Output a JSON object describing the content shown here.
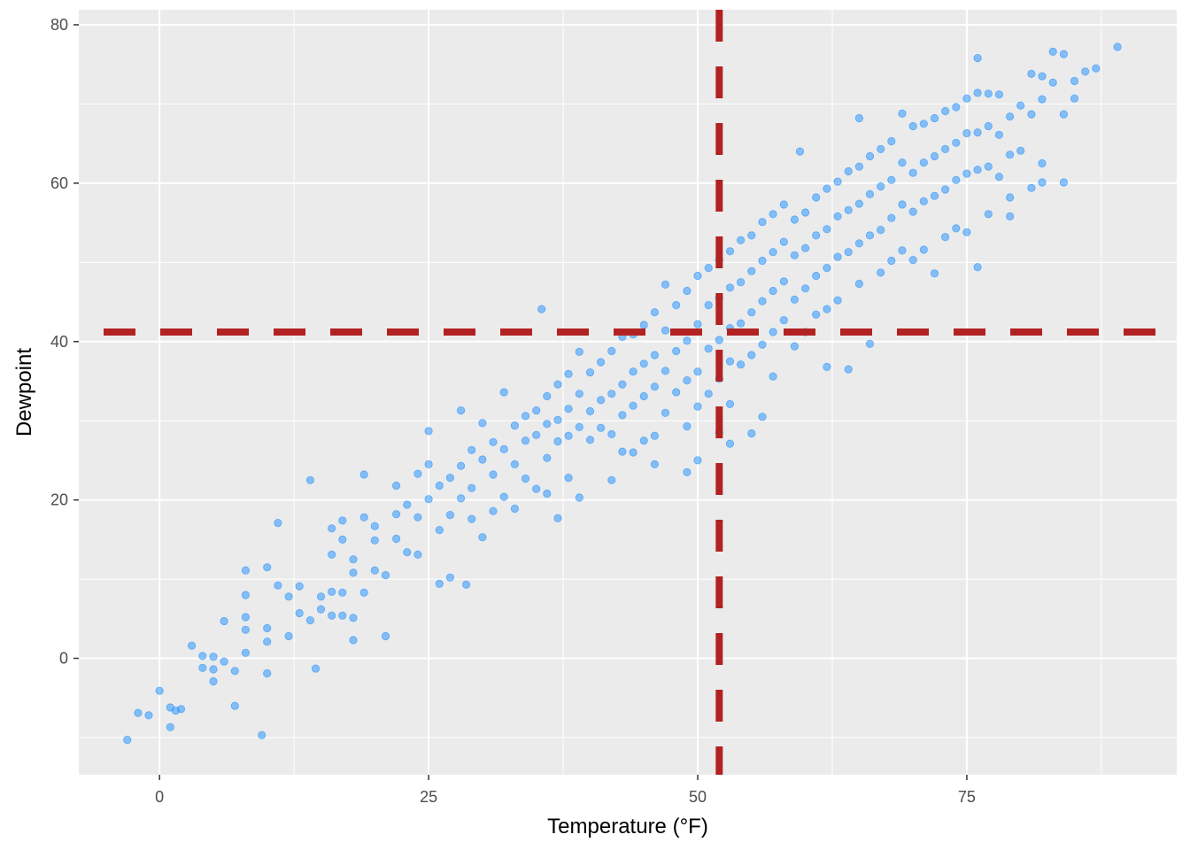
{
  "chart_data": {
    "type": "scatter",
    "title": "",
    "xlabel": "Temperature (°F)",
    "ylabel": "Dewpoint",
    "xlim": [
      -7.5,
      94.5
    ],
    "ylim": [
      -14.7,
      81.9
    ],
    "x_ticks": [
      0,
      25,
      50,
      75
    ],
    "y_ticks": [
      0,
      20,
      40,
      60,
      80
    ],
    "x_tick_labels": [
      "0",
      "25",
      "50",
      "75"
    ],
    "y_tick_labels": [
      "0",
      "20",
      "40",
      "60",
      "80"
    ],
    "grid": true,
    "legend": "none",
    "point_color": "#1E90FF",
    "reference_line_color": "#B22222",
    "reference_lines": {
      "vertical_x": 52,
      "horizontal_y": 41.2
    },
    "series": [
      {
        "points_estimated": [
          [
            -3,
            -10.3
          ],
          [
            -2,
            -6.9
          ],
          [
            -1,
            -7.2
          ],
          [
            0,
            -4.1
          ],
          [
            1,
            -6.2
          ],
          [
            1,
            -8.7
          ],
          [
            1.5,
            -6.6
          ],
          [
            2,
            -6.4
          ],
          [
            3,
            1.6
          ],
          [
            4,
            0.3
          ],
          [
            4,
            -1.2
          ],
          [
            5,
            -2.9
          ],
          [
            5,
            -1.4
          ],
          [
            5,
            0.2
          ],
          [
            6,
            -0.4
          ],
          [
            6,
            4.7
          ],
          [
            7,
            -1.6
          ],
          [
            7,
            -6.0
          ],
          [
            8,
            11.1
          ],
          [
            8,
            8.0
          ],
          [
            8,
            5.2
          ],
          [
            8,
            3.6
          ],
          [
            8,
            0.7
          ],
          [
            9.5,
            -9.7
          ],
          [
            10,
            11.5
          ],
          [
            10,
            3.8
          ],
          [
            10,
            2.1
          ],
          [
            10,
            -1.9
          ],
          [
            11,
            17.1
          ],
          [
            11,
            9.2
          ],
          [
            12,
            7.8
          ],
          [
            12,
            2.8
          ],
          [
            13,
            9.1
          ],
          [
            13,
            5.7
          ],
          [
            14,
            22.5
          ],
          [
            14,
            4.8
          ],
          [
            14.5,
            -1.3
          ],
          [
            15,
            7.8
          ],
          [
            15,
            6.2
          ],
          [
            16,
            16.4
          ],
          [
            16,
            13.1
          ],
          [
            16,
            8.4
          ],
          [
            16,
            5.4
          ],
          [
            17,
            17.4
          ],
          [
            17,
            15.0
          ],
          [
            17,
            8.3
          ],
          [
            17,
            5.4
          ],
          [
            18,
            12.5
          ],
          [
            18,
            10.8
          ],
          [
            18,
            5.1
          ],
          [
            18,
            2.3
          ],
          [
            19,
            23.2
          ],
          [
            19,
            17.8
          ],
          [
            19,
            8.3
          ],
          [
            20,
            16.7
          ],
          [
            20,
            14.9
          ],
          [
            20,
            11.1
          ],
          [
            21,
            10.5
          ],
          [
            21,
            2.8
          ],
          [
            22,
            21.8
          ],
          [
            22,
            18.2
          ],
          [
            22,
            15.1
          ],
          [
            23,
            19.4
          ],
          [
            23,
            13.4
          ],
          [
            24,
            23.3
          ],
          [
            24,
            17.8
          ],
          [
            24,
            13.1
          ],
          [
            25,
            28.7
          ],
          [
            25,
            24.5
          ],
          [
            25,
            20.1
          ],
          [
            26,
            9.4
          ],
          [
            26,
            21.8
          ],
          [
            26,
            16.2
          ],
          [
            27,
            22.8
          ],
          [
            27,
            18.1
          ],
          [
            27,
            10.2
          ],
          [
            28,
            31.3
          ],
          [
            28,
            24.3
          ],
          [
            28,
            20.2
          ],
          [
            28.5,
            9.3
          ],
          [
            29,
            26.3
          ],
          [
            29,
            21.5
          ],
          [
            29,
            17.6
          ],
          [
            30,
            29.7
          ],
          [
            30,
            25.1
          ],
          [
            30,
            15.3
          ],
          [
            31,
            27.3
          ],
          [
            31,
            23.2
          ],
          [
            31,
            18.6
          ],
          [
            32,
            33.6
          ],
          [
            32,
            26.4
          ],
          [
            32,
            20.4
          ],
          [
            33,
            29.4
          ],
          [
            33,
            24.5
          ],
          [
            33,
            18.9
          ],
          [
            34,
            30.6
          ],
          [
            34,
            27.5
          ],
          [
            34,
            22.7
          ],
          [
            35,
            31.3
          ],
          [
            35,
            28.2
          ],
          [
            35,
            21.4
          ],
          [
            35.5,
            44.1
          ],
          [
            36,
            33.1
          ],
          [
            36,
            29.6
          ],
          [
            36,
            25.3
          ],
          [
            36,
            20.8
          ],
          [
            37,
            34.6
          ],
          [
            37,
            30.1
          ],
          [
            37,
            27.4
          ],
          [
            37,
            17.7
          ],
          [
            38,
            35.9
          ],
          [
            38,
            31.5
          ],
          [
            38,
            28.1
          ],
          [
            38,
            22.8
          ],
          [
            39,
            38.7
          ],
          [
            39,
            33.4
          ],
          [
            39,
            29.2
          ],
          [
            39,
            20.3
          ],
          [
            40,
            36.1
          ],
          [
            40,
            31.2
          ],
          [
            40,
            27.6
          ],
          [
            41,
            37.4
          ],
          [
            41,
            32.6
          ],
          [
            41,
            29.1
          ],
          [
            42,
            38.8
          ],
          [
            42,
            33.4
          ],
          [
            42,
            28.3
          ],
          [
            42,
            22.5
          ],
          [
            43,
            40.6
          ],
          [
            43,
            34.6
          ],
          [
            43,
            30.7
          ],
          [
            43,
            26.1
          ],
          [
            44,
            40.9
          ],
          [
            44,
            36.2
          ],
          [
            44,
            31.9
          ],
          [
            44,
            26.0
          ],
          [
            45,
            42.1
          ],
          [
            45,
            37.2
          ],
          [
            45,
            33.1
          ],
          [
            45,
            27.5
          ],
          [
            46,
            43.7
          ],
          [
            46,
            38.3
          ],
          [
            46,
            34.3
          ],
          [
            46,
            28.1
          ],
          [
            46,
            24.5
          ],
          [
            47,
            47.2
          ],
          [
            47,
            41.4
          ],
          [
            47,
            36.3
          ],
          [
            47,
            31.0
          ],
          [
            48,
            44.6
          ],
          [
            48,
            38.8
          ],
          [
            48,
            33.6
          ],
          [
            49,
            46.4
          ],
          [
            49,
            40.1
          ],
          [
            49,
            35.1
          ],
          [
            49,
            29.3
          ],
          [
            49,
            23.5
          ],
          [
            50,
            48.3
          ],
          [
            50,
            42.2
          ],
          [
            50,
            36.2
          ],
          [
            50,
            31.8
          ],
          [
            50,
            25.0
          ],
          [
            51,
            49.3
          ],
          [
            51,
            44.6
          ],
          [
            51,
            39.1
          ],
          [
            51,
            33.4
          ],
          [
            52,
            50.3
          ],
          [
            52,
            45.5
          ],
          [
            52,
            40.2
          ],
          [
            52,
            35.3
          ],
          [
            52,
            28.5
          ],
          [
            53,
            51.4
          ],
          [
            53,
            46.8
          ],
          [
            53,
            41.7
          ],
          [
            53,
            37.5
          ],
          [
            53,
            32.1
          ],
          [
            53,
            27.1
          ],
          [
            54,
            52.8
          ],
          [
            54,
            47.5
          ],
          [
            54,
            42.3
          ],
          [
            54,
            37.1
          ],
          [
            55,
            53.4
          ],
          [
            55,
            48.9
          ],
          [
            55,
            43.7
          ],
          [
            55,
            38.3
          ],
          [
            55,
            28.4
          ],
          [
            56,
            55.1
          ],
          [
            56,
            50.2
          ],
          [
            56,
            45.1
          ],
          [
            56,
            39.6
          ],
          [
            56,
            30.5
          ],
          [
            57,
            56.1
          ],
          [
            57,
            51.3
          ],
          [
            57,
            46.4
          ],
          [
            57,
            41.2
          ],
          [
            57,
            35.6
          ],
          [
            58,
            57.3
          ],
          [
            58,
            52.6
          ],
          [
            58,
            47.6
          ],
          [
            58,
            42.7
          ],
          [
            59,
            55.4
          ],
          [
            59,
            50.9
          ],
          [
            59,
            45.3
          ],
          [
            59,
            39.4
          ],
          [
            59.5,
            64.0
          ],
          [
            60,
            56.3
          ],
          [
            60,
            51.8
          ],
          [
            60,
            46.7
          ],
          [
            60,
            41.2
          ],
          [
            61,
            58.2
          ],
          [
            61,
            53.4
          ],
          [
            61,
            48.3
          ],
          [
            61,
            43.4
          ],
          [
            62,
            59.3
          ],
          [
            62,
            54.2
          ],
          [
            62,
            49.3
          ],
          [
            62,
            44.1
          ],
          [
            62,
            36.8
          ],
          [
            63,
            60.2
          ],
          [
            63,
            55.8
          ],
          [
            63,
            50.7
          ],
          [
            63,
            45.2
          ],
          [
            64,
            61.5
          ],
          [
            64,
            56.6
          ],
          [
            64,
            51.3
          ],
          [
            64,
            36.5
          ],
          [
            65,
            68.2
          ],
          [
            65,
            62.1
          ],
          [
            65,
            57.4
          ],
          [
            65,
            52.4
          ],
          [
            65,
            47.3
          ],
          [
            66,
            63.4
          ],
          [
            66,
            58.6
          ],
          [
            66,
            53.4
          ],
          [
            66,
            39.7
          ],
          [
            67,
            64.3
          ],
          [
            67,
            59.6
          ],
          [
            67,
            54.1
          ],
          [
            67,
            48.7
          ],
          [
            68,
            65.3
          ],
          [
            68,
            60.4
          ],
          [
            68,
            55.6
          ],
          [
            68,
            50.2
          ],
          [
            69,
            68.8
          ],
          [
            69,
            62.6
          ],
          [
            69,
            57.3
          ],
          [
            69,
            51.5
          ],
          [
            70,
            67.2
          ],
          [
            70,
            61.3
          ],
          [
            70,
            56.4
          ],
          [
            70,
            50.3
          ],
          [
            71,
            67.5
          ],
          [
            71,
            62.6
          ],
          [
            71,
            57.7
          ],
          [
            71,
            51.6
          ],
          [
            72,
            68.2
          ],
          [
            72,
            63.4
          ],
          [
            72,
            58.4
          ],
          [
            72,
            48.6
          ],
          [
            73,
            69.1
          ],
          [
            73,
            64.3
          ],
          [
            73,
            59.2
          ],
          [
            73,
            53.2
          ],
          [
            74,
            69.6
          ],
          [
            74,
            65.1
          ],
          [
            74,
            60.4
          ],
          [
            74,
            54.3
          ],
          [
            75,
            70.7
          ],
          [
            75,
            66.3
          ],
          [
            75,
            61.2
          ],
          [
            75,
            53.8
          ],
          [
            76,
            75.8
          ],
          [
            76,
            71.4
          ],
          [
            76,
            66.4
          ],
          [
            76,
            61.7
          ],
          [
            76,
            49.4
          ],
          [
            77,
            71.3
          ],
          [
            77,
            67.2
          ],
          [
            77,
            62.1
          ],
          [
            77,
            56.1
          ],
          [
            78,
            71.2
          ],
          [
            78,
            66.1
          ],
          [
            78,
            60.8
          ],
          [
            79,
            68.4
          ],
          [
            79,
            63.6
          ],
          [
            79,
            58.2
          ],
          [
            79,
            55.8
          ],
          [
            80,
            69.8
          ],
          [
            80,
            64.1
          ],
          [
            81,
            73.8
          ],
          [
            81,
            68.7
          ],
          [
            81,
            59.4
          ],
          [
            82,
            73.5
          ],
          [
            82,
            70.6
          ],
          [
            82,
            62.5
          ],
          [
            82,
            60.1
          ],
          [
            83,
            76.6
          ],
          [
            83,
            72.7
          ],
          [
            84,
            76.3
          ],
          [
            84,
            68.7
          ],
          [
            84,
            60.1
          ],
          [
            85,
            72.9
          ],
          [
            85,
            70.7
          ],
          [
            86,
            74.1
          ],
          [
            87,
            74.5
          ],
          [
            89,
            77.2
          ]
        ]
      }
    ]
  }
}
